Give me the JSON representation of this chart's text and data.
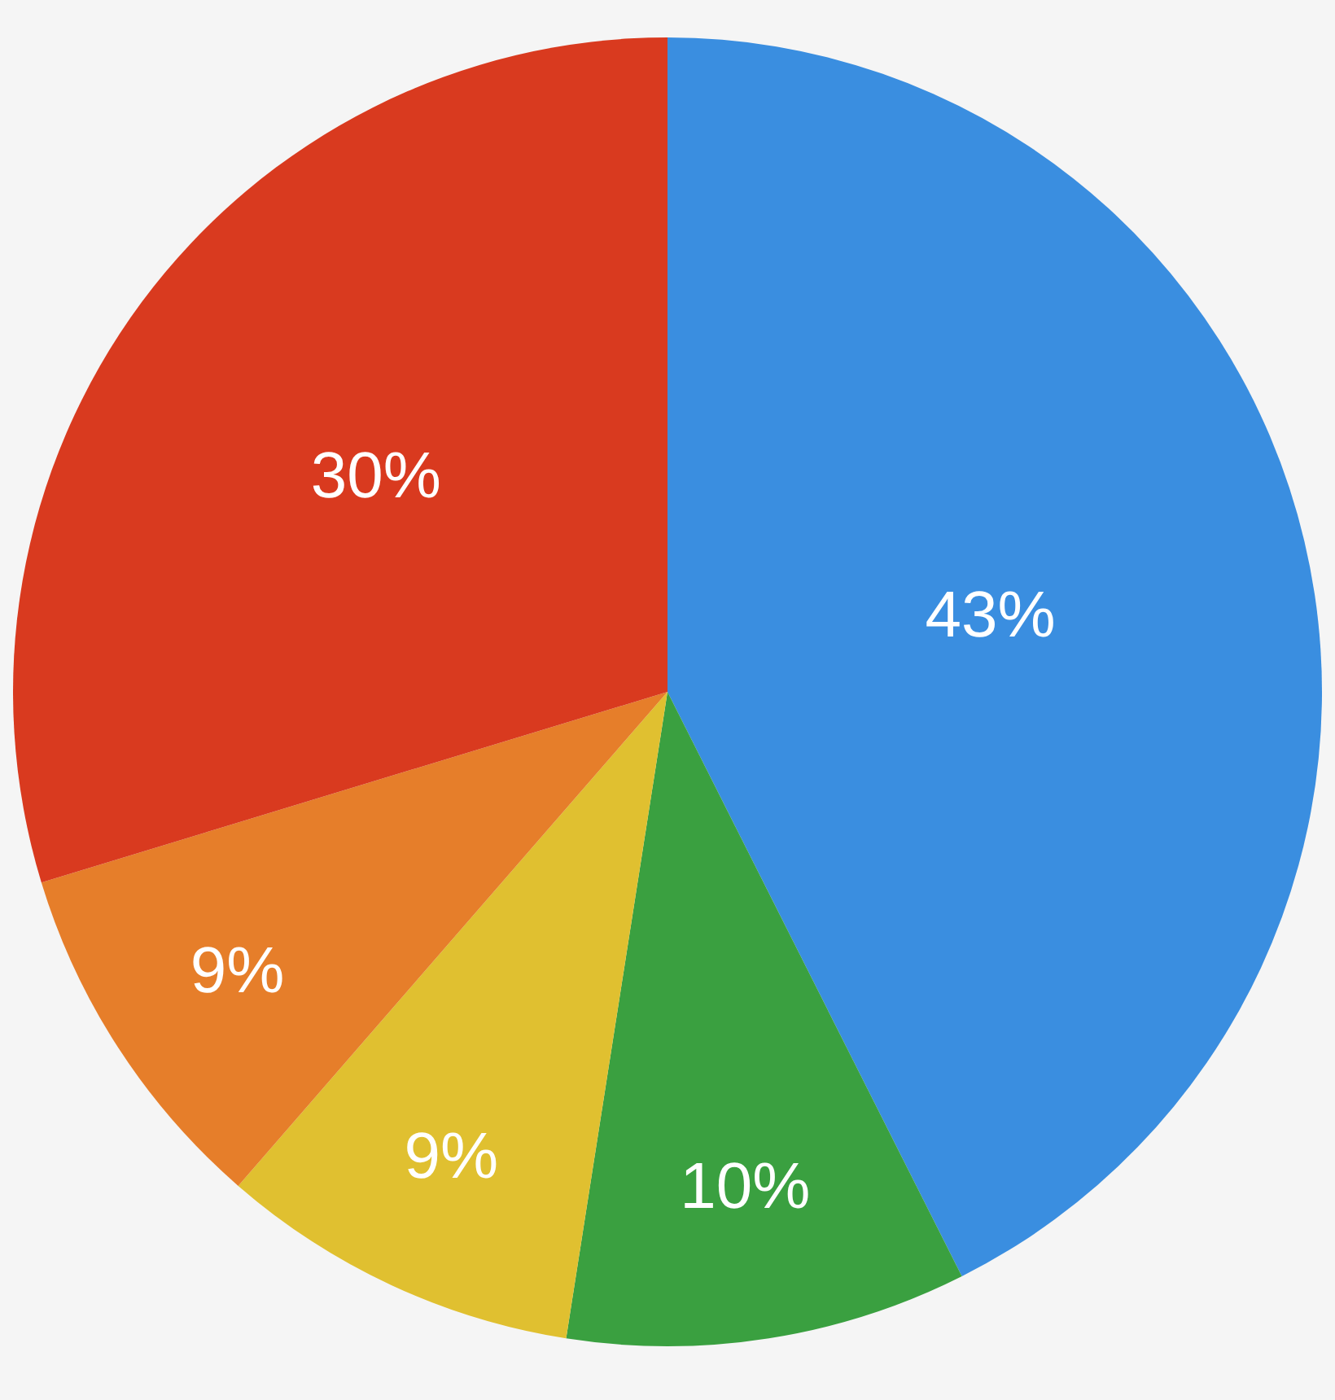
{
  "chart_data": {
    "type": "pie",
    "categories": [
      null,
      null,
      null,
      null,
      null
    ],
    "values": [
      43,
      10,
      9,
      9,
      30
    ],
    "value_labels": [
      "43%",
      "10%",
      "9%",
      "9%",
      "30%"
    ],
    "colors": [
      "#3a8ee0",
      "#3aa040",
      "#e0c030",
      "#e67e2a",
      "#d93a1f"
    ],
    "legend": false
  }
}
